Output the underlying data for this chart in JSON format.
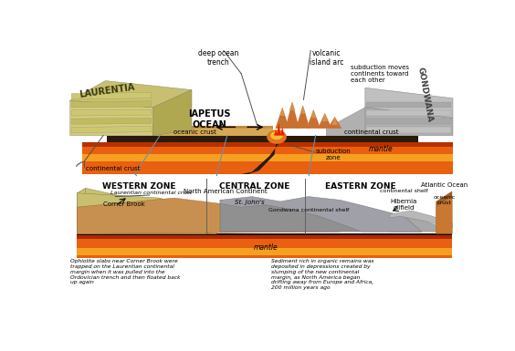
{
  "bg_color": "#ffffff",
  "top": {
    "laurentia_color": "#d4c980",
    "laurentia_top_color": "#c8c070",
    "laurentia_side_color": "#b0a850",
    "iapetus_color": "#d4a855",
    "gondwana_color": "#b0b0b0",
    "gondwana_top_color": "#c0c0c0",
    "oceanic_crust_color": "#c8a050",
    "dark_crust_color": "#2a1a08",
    "mantle_orange": "#e86010",
    "mantle_yellow": "#f5a020",
    "subduction_dark": "#1a0808",
    "lava_orange": "#e87020",
    "lava_yellow": "#f0c030",
    "volcano_brown": "#c87030",
    "gondwana_cont_crust": "#a0a0a0",
    "label_laurentia": "LAURENTIA",
    "label_iapetus": "IAPETUS\nOCEAN",
    "label_gondwana": "GONDWANA",
    "label_deep_ocean_trench": "deep ocean\ntrench",
    "label_volcanic_island_arc": "volcanic\nisland arc",
    "label_subduction_moves": "subduction moves\ncontinents toward\neach other",
    "label_oceanic_crust": "oceanic crust",
    "label_continental_crust_left": "continental crust",
    "label_continental_crust_right": "continental crust",
    "label_mantle": "mantle",
    "label_subduction_zone": "subduction\nzone"
  },
  "bottom": {
    "laurentian_color": "#c8c070",
    "laurentian_side_color": "#a8a050",
    "na_color": "#c89050",
    "gondwana_shelf_color": "#909090",
    "cont_shelf_color": "#a8a8a8",
    "oceanic_crust_color": "#c87830",
    "oceanic_crust_side": "#a06020",
    "mantle_orange": "#e86010",
    "mantle_yellow": "#f5a020",
    "dark_base": "#1a0a00",
    "label_western": "WESTERN ZONE",
    "label_central": "CENTRAL ZONE",
    "label_eastern": "EASTERN ZONE",
    "label_atlantic": "Atlantic Ocean",
    "label_laurentian_crust": "Laurentian continental crust",
    "label_na": "North American Continent",
    "label_corner_brook": "Corner Brook",
    "label_st_johns": "St. John's",
    "label_gondwana_shelf": "Gondwana continental shelf",
    "label_cont_shelf": "continental shelf",
    "label_oceanic_crust": "oceanic\ncrust",
    "label_hibernia": "Hibernia\noilfield",
    "label_mantle": "mantle",
    "note_left": "Ophiolite slabs near Corner Brook were\ntrapped on the Laurentian continental\nmargin when it was pulled into the\nOrdovician trench and then floated back\nup again",
    "note_right": "Sediment rich in organic remains was\ndeposited in depressions created by\nslumping of the new continental\nmargin, as North America began\ndrifting away from Europe and Africa,\n200 million years ago"
  }
}
